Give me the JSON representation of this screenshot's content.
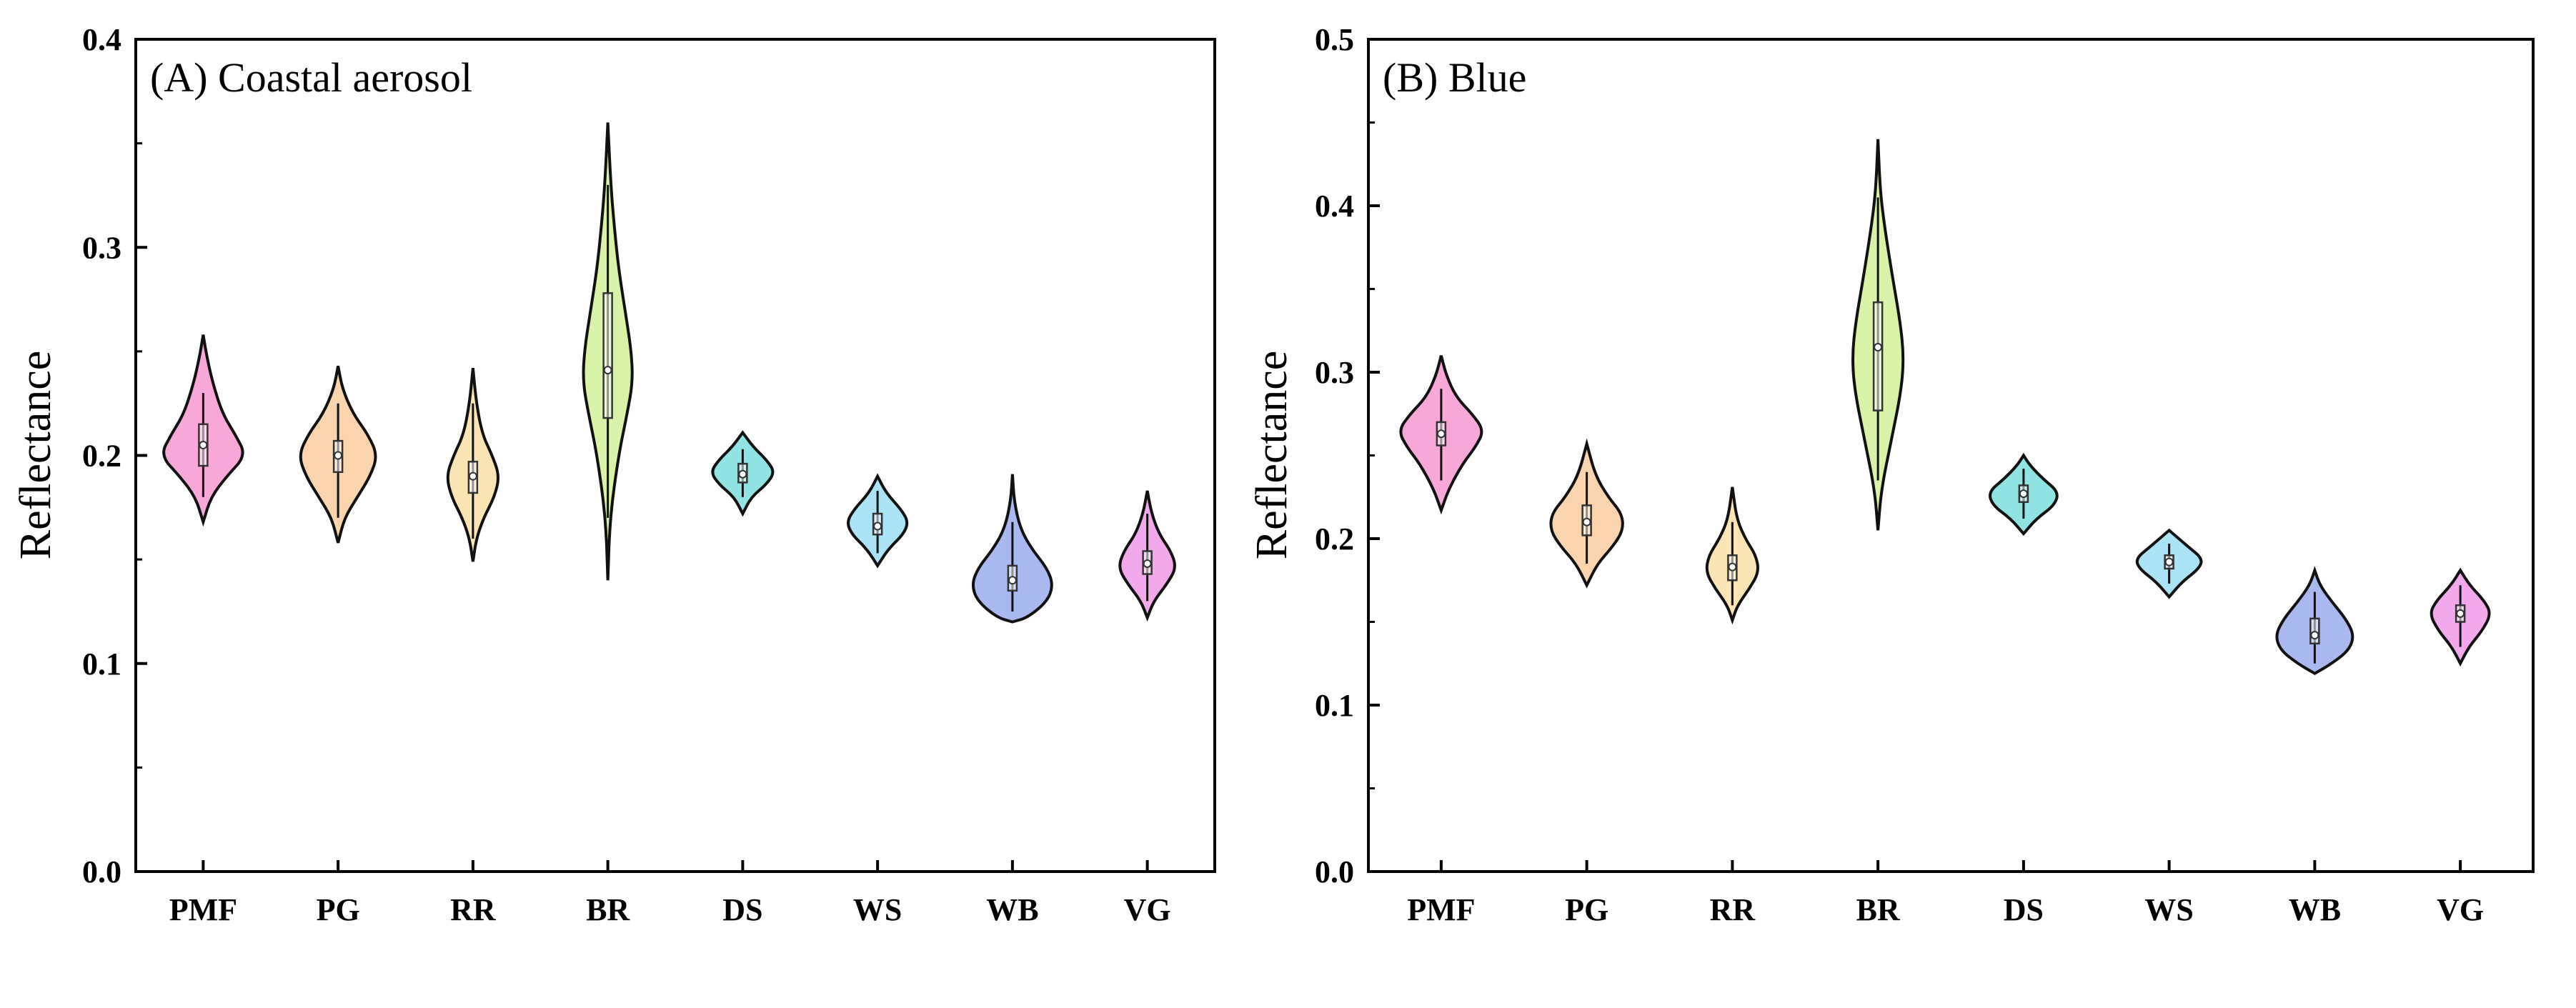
{
  "chart_data": [
    {
      "type": "violin",
      "title": "(A) Coastal aerosol",
      "xlabel": "",
      "ylabel": "Reflectance",
      "ylim": [
        0.0,
        0.4
      ],
      "yticks": [
        "0.0",
        "0.1",
        "0.2",
        "0.3",
        "0.4"
      ],
      "categories": [
        "PMF",
        "PG",
        "RR",
        "BR",
        "DS",
        "WS",
        "WB",
        "VG"
      ],
      "colors": [
        "#f7a8d8",
        "#fbd4ad",
        "#fbe4b3",
        "#d8f2a8",
        "#8fe3e3",
        "#a9e3f5",
        "#a9b8ef",
        "#f2a9ec"
      ],
      "violins": [
        {
          "min": 0.168,
          "max": 0.258,
          "q1": 0.195,
          "median": 0.205,
          "q3": 0.215,
          "whisker_low": 0.18,
          "whisker_high": 0.23,
          "profile": [
            [
              0.168,
              0.0
            ],
            [
              0.18,
              0.18
            ],
            [
              0.19,
              0.55
            ],
            [
              0.2,
              1.0
            ],
            [
              0.21,
              0.75
            ],
            [
              0.22,
              0.45
            ],
            [
              0.235,
              0.22
            ],
            [
              0.248,
              0.08
            ],
            [
              0.258,
              0.0
            ]
          ]
        },
        {
          "min": 0.158,
          "max": 0.243,
          "q1": 0.192,
          "median": 0.2,
          "q3": 0.207,
          "whisker_low": 0.17,
          "whisker_high": 0.225,
          "profile": [
            [
              0.158,
              0.0
            ],
            [
              0.17,
              0.15
            ],
            [
              0.18,
              0.45
            ],
            [
              0.19,
              0.75
            ],
            [
              0.2,
              0.92
            ],
            [
              0.21,
              0.7
            ],
            [
              0.22,
              0.35
            ],
            [
              0.232,
              0.1
            ],
            [
              0.243,
              0.0
            ]
          ]
        },
        {
          "min": 0.149,
          "max": 0.242,
          "q1": 0.182,
          "median": 0.19,
          "q3": 0.197,
          "whisker_low": 0.16,
          "whisker_high": 0.225,
          "profile": [
            [
              0.149,
              0.0
            ],
            [
              0.16,
              0.08
            ],
            [
              0.17,
              0.25
            ],
            [
              0.18,
              0.5
            ],
            [
              0.19,
              0.62
            ],
            [
              0.2,
              0.45
            ],
            [
              0.21,
              0.22
            ],
            [
              0.225,
              0.08
            ],
            [
              0.242,
              0.0
            ]
          ]
        },
        {
          "min": 0.14,
          "max": 0.36,
          "q1": 0.218,
          "median": 0.241,
          "q3": 0.278,
          "whisker_low": 0.17,
          "whisker_high": 0.33,
          "profile": [
            [
              0.14,
              0.0
            ],
            [
              0.17,
              0.05
            ],
            [
              0.2,
              0.25
            ],
            [
              0.22,
              0.45
            ],
            [
              0.235,
              0.58
            ],
            [
              0.25,
              0.55
            ],
            [
              0.27,
              0.4
            ],
            [
              0.29,
              0.25
            ],
            [
              0.31,
              0.15
            ],
            [
              0.33,
              0.07
            ],
            [
              0.36,
              0.0
            ]
          ]
        },
        {
          "min": 0.172,
          "max": 0.211,
          "q1": 0.187,
          "median": 0.191,
          "q3": 0.196,
          "whisker_low": 0.18,
          "whisker_high": 0.203,
          "profile": [
            [
              0.172,
              0.0
            ],
            [
              0.18,
              0.2
            ],
            [
              0.186,
              0.55
            ],
            [
              0.192,
              0.75
            ],
            [
              0.198,
              0.55
            ],
            [
              0.204,
              0.25
            ],
            [
              0.211,
              0.0
            ]
          ]
        },
        {
          "min": 0.147,
          "max": 0.19,
          "q1": 0.162,
          "median": 0.166,
          "q3": 0.172,
          "whisker_low": 0.153,
          "whisker_high": 0.183,
          "profile": [
            [
              0.147,
              0.0
            ],
            [
              0.155,
              0.25
            ],
            [
              0.162,
              0.6
            ],
            [
              0.168,
              0.72
            ],
            [
              0.174,
              0.55
            ],
            [
              0.182,
              0.2
            ],
            [
              0.19,
              0.0
            ]
          ]
        },
        {
          "min": 0.12,
          "max": 0.191,
          "q1": 0.135,
          "median": 0.14,
          "q3": 0.147,
          "whisker_low": 0.125,
          "whisker_high": 0.168,
          "profile": [
            [
              0.12,
              0.0
            ],
            [
              0.122,
              0.35
            ],
            [
              0.13,
              0.82
            ],
            [
              0.138,
              0.95
            ],
            [
              0.146,
              0.8
            ],
            [
              0.155,
              0.45
            ],
            [
              0.165,
              0.18
            ],
            [
              0.178,
              0.04
            ],
            [
              0.191,
              0.0
            ]
          ]
        },
        {
          "min": 0.122,
          "max": 0.183,
          "q1": 0.143,
          "median": 0.148,
          "q3": 0.154,
          "whisker_low": 0.13,
          "whisker_high": 0.172,
          "profile": [
            [
              0.122,
              0.0
            ],
            [
              0.13,
              0.15
            ],
            [
              0.138,
              0.45
            ],
            [
              0.146,
              0.68
            ],
            [
              0.154,
              0.55
            ],
            [
              0.162,
              0.28
            ],
            [
              0.172,
              0.1
            ],
            [
              0.183,
              0.0
            ]
          ]
        }
      ]
    },
    {
      "type": "violin",
      "title": "(B) Blue",
      "xlabel": "",
      "ylabel": "Reflectance",
      "ylim": [
        0.0,
        0.5
      ],
      "yticks": [
        "0.0",
        "0.1",
        "0.2",
        "0.3",
        "0.4",
        "0.5"
      ],
      "categories": [
        "PMF",
        "PG",
        "RR",
        "BR",
        "DS",
        "WS",
        "WB",
        "VG"
      ],
      "colors": [
        "#f7a8d8",
        "#fbd4ad",
        "#fbe4b3",
        "#d8f2a8",
        "#8fe3e3",
        "#a9e3f5",
        "#a9b8ef",
        "#f2a9ec"
      ],
      "violins": [
        {
          "min": 0.217,
          "max": 0.31,
          "q1": 0.256,
          "median": 0.263,
          "q3": 0.27,
          "whisker_low": 0.235,
          "whisker_high": 0.29,
          "profile": [
            [
              0.217,
              0.0
            ],
            [
              0.23,
              0.18
            ],
            [
              0.245,
              0.5
            ],
            [
              0.255,
              0.8
            ],
            [
              0.265,
              1.0
            ],
            [
              0.275,
              0.72
            ],
            [
              0.285,
              0.35
            ],
            [
              0.298,
              0.12
            ],
            [
              0.31,
              0.0
            ]
          ]
        },
        {
          "min": 0.172,
          "max": 0.257,
          "q1": 0.202,
          "median": 0.21,
          "q3": 0.22,
          "whisker_low": 0.185,
          "whisker_high": 0.24,
          "profile": [
            [
              0.172,
              0.0
            ],
            [
              0.185,
              0.25
            ],
            [
              0.195,
              0.6
            ],
            [
              0.205,
              0.85
            ],
            [
              0.215,
              0.82
            ],
            [
              0.225,
              0.5
            ],
            [
              0.238,
              0.2
            ],
            [
              0.257,
              0.0
            ]
          ]
        },
        {
          "min": 0.151,
          "max": 0.231,
          "q1": 0.175,
          "median": 0.183,
          "q3": 0.19,
          "whisker_low": 0.16,
          "whisker_high": 0.21,
          "profile": [
            [
              0.151,
              0.0
            ],
            [
              0.16,
              0.12
            ],
            [
              0.17,
              0.4
            ],
            [
              0.18,
              0.62
            ],
            [
              0.19,
              0.55
            ],
            [
              0.2,
              0.3
            ],
            [
              0.212,
              0.1
            ],
            [
              0.231,
              0.0
            ]
          ]
        },
        {
          "min": 0.205,
          "max": 0.44,
          "q1": 0.277,
          "median": 0.315,
          "q3": 0.342,
          "whisker_low": 0.235,
          "whisker_high": 0.405,
          "profile": [
            [
              0.205,
              0.0
            ],
            [
              0.23,
              0.08
            ],
            [
              0.26,
              0.32
            ],
            [
              0.29,
              0.55
            ],
            [
              0.31,
              0.6
            ],
            [
              0.33,
              0.52
            ],
            [
              0.36,
              0.32
            ],
            [
              0.39,
              0.14
            ],
            [
              0.41,
              0.05
            ],
            [
              0.44,
              0.0
            ]
          ]
        },
        {
          "min": 0.203,
          "max": 0.25,
          "q1": 0.222,
          "median": 0.227,
          "q3": 0.232,
          "whisker_low": 0.212,
          "whisker_high": 0.242,
          "profile": [
            [
              0.203,
              0.0
            ],
            [
              0.212,
              0.3
            ],
            [
              0.22,
              0.72
            ],
            [
              0.228,
              0.82
            ],
            [
              0.236,
              0.45
            ],
            [
              0.244,
              0.15
            ],
            [
              0.25,
              0.0
            ]
          ]
        },
        {
          "min": 0.165,
          "max": 0.205,
          "q1": 0.182,
          "median": 0.186,
          "q3": 0.19,
          "whisker_low": 0.173,
          "whisker_high": 0.197,
          "profile": [
            [
              0.165,
              0.0
            ],
            [
              0.174,
              0.3
            ],
            [
              0.182,
              0.7
            ],
            [
              0.188,
              0.78
            ],
            [
              0.195,
              0.45
            ],
            [
              0.205,
              0.0
            ]
          ]
        },
        {
          "min": 0.119,
          "max": 0.181,
          "q1": 0.137,
          "median": 0.142,
          "q3": 0.152,
          "whisker_low": 0.125,
          "whisker_high": 0.168,
          "profile": [
            [
              0.119,
              0.0
            ],
            [
              0.125,
              0.4
            ],
            [
              0.133,
              0.8
            ],
            [
              0.142,
              0.92
            ],
            [
              0.152,
              0.72
            ],
            [
              0.162,
              0.4
            ],
            [
              0.172,
              0.12
            ],
            [
              0.181,
              0.0
            ]
          ]
        },
        {
          "min": 0.125,
          "max": 0.181,
          "q1": 0.15,
          "median": 0.155,
          "q3": 0.16,
          "whisker_low": 0.135,
          "whisker_high": 0.172,
          "profile": [
            [
              0.125,
              0.0
            ],
            [
              0.135,
              0.2
            ],
            [
              0.145,
              0.52
            ],
            [
              0.155,
              0.72
            ],
            [
              0.163,
              0.55
            ],
            [
              0.172,
              0.22
            ],
            [
              0.181,
              0.0
            ]
          ]
        }
      ]
    }
  ]
}
